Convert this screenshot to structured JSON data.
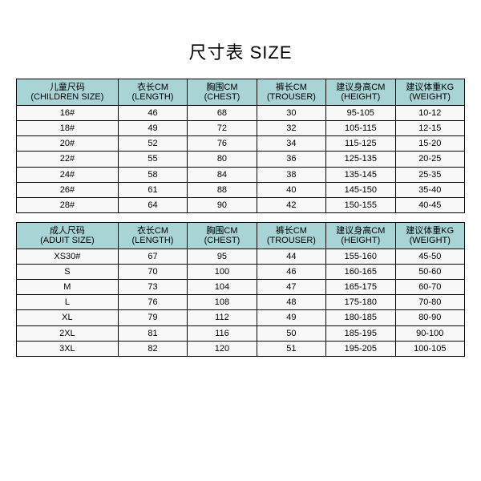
{
  "title": "尺寸表 SIZE",
  "header_bg": "#a9d4d6",
  "row_bg": "#f8f8f8",
  "columns": [
    {
      "cn": "",
      "en": "",
      "width": 110
    }
  ],
  "children": {
    "headers": [
      {
        "cn": "儿童尺码",
        "en": "(CHILDREN SIZE)"
      },
      {
        "cn": "衣长CM",
        "en": "(LENGTH)"
      },
      {
        "cn": "胸围CM",
        "en": "(CHEST)"
      },
      {
        "cn": "裤长CM",
        "en": "(TROUSER)"
      },
      {
        "cn": "建议身高CM",
        "en": "(HEIGHT)"
      },
      {
        "cn": "建议体重KG",
        "en": "(WEIGHT)"
      }
    ],
    "rows": [
      [
        "16#",
        "46",
        "68",
        "30",
        "95-105",
        "10-12"
      ],
      [
        "18#",
        "49",
        "72",
        "32",
        "105-115",
        "12-15"
      ],
      [
        "20#",
        "52",
        "76",
        "34",
        "115-125",
        "15-20"
      ],
      [
        "22#",
        "55",
        "80",
        "36",
        "125-135",
        "20-25"
      ],
      [
        "24#",
        "58",
        "84",
        "38",
        "135-145",
        "25-35"
      ],
      [
        "26#",
        "61",
        "88",
        "40",
        "145-150",
        "35-40"
      ],
      [
        "28#",
        "64",
        "90",
        "42",
        "150-155",
        "40-45"
      ]
    ]
  },
  "adult": {
    "headers": [
      {
        "cn": "成人尺码",
        "en": "(ADUIT SIZE)"
      },
      {
        "cn": "衣长CM",
        "en": "(LENGTH)"
      },
      {
        "cn": "胸围CM",
        "en": "(CHEST)"
      },
      {
        "cn": "裤长CM",
        "en": "(TROUSER)"
      },
      {
        "cn": "建议身高CM",
        "en": "(HEIGHT)"
      },
      {
        "cn": "建议体重KG",
        "en": "(WEIGHT)"
      }
    ],
    "rows": [
      [
        "XS30#",
        "67",
        "95",
        "44",
        "155-160",
        "45-50"
      ],
      [
        "S",
        "70",
        "100",
        "46",
        "160-165",
        "50-60"
      ],
      [
        "M",
        "73",
        "104",
        "47",
        "165-175",
        "60-70"
      ],
      [
        "L",
        "76",
        "108",
        "48",
        "175-180",
        "70-80"
      ],
      [
        "XL",
        "79",
        "112",
        "49",
        "180-185",
        "80-90"
      ],
      [
        "2XL",
        "81",
        "116",
        "50",
        "185-195",
        "90-100"
      ],
      [
        "3XL",
        "82",
        "120",
        "51",
        "195-205",
        "100-105"
      ]
    ]
  }
}
